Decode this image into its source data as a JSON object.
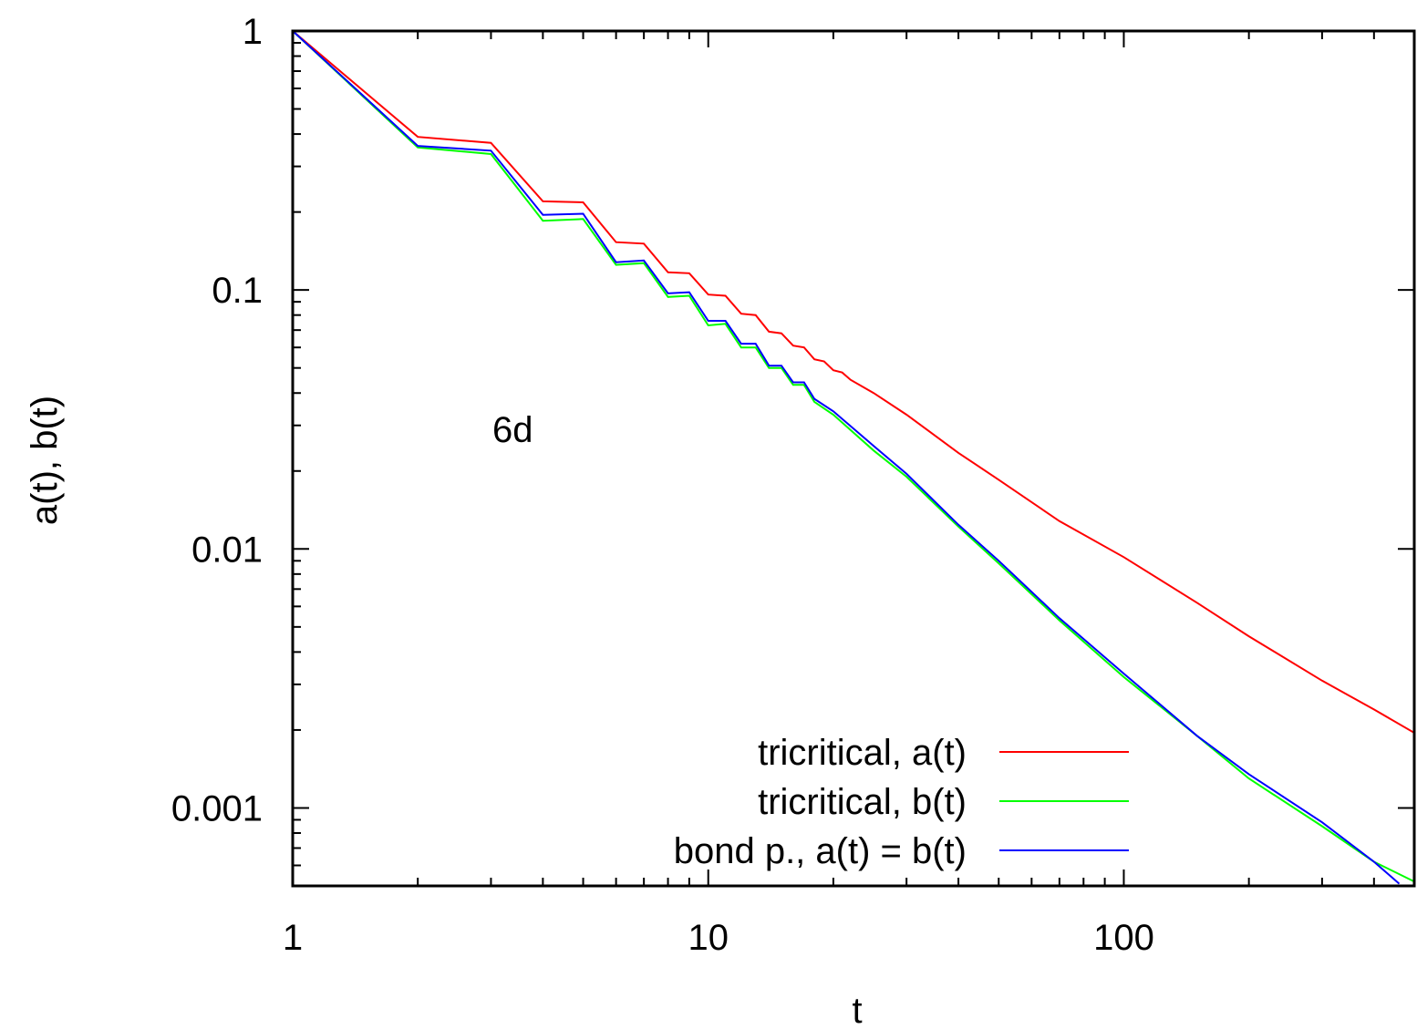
{
  "chart_data": {
    "type": "line",
    "xscale": "log",
    "yscale": "log",
    "xlim": [
      1,
      500
    ],
    "ylim": [
      0.0005,
      1
    ],
    "xlabel": "t",
    "ylabel": "a(t),  b(t)",
    "annotation": "6d",
    "xticks": [
      {
        "value": 1,
        "label": "1"
      },
      {
        "value": 10,
        "label": "10"
      },
      {
        "value": 100,
        "label": "100"
      }
    ],
    "yticks": [
      {
        "value": 1,
        "label": "1"
      },
      {
        "value": 0.1,
        "label": "0.1"
      },
      {
        "value": 0.01,
        "label": "0.01"
      },
      {
        "value": 0.001,
        "label": "0.001"
      }
    ],
    "legend_position": "bottom-right",
    "series": [
      {
        "name": "tricritical, a(t)",
        "color": "#ff0000",
        "points": [
          [
            1,
            1
          ],
          [
            2,
            0.39
          ],
          [
            3,
            0.37
          ],
          [
            4,
            0.22
          ],
          [
            5,
            0.218
          ],
          [
            6,
            0.153
          ],
          [
            7,
            0.151
          ],
          [
            8,
            0.117
          ],
          [
            9,
            0.116
          ],
          [
            10,
            0.096
          ],
          [
            11,
            0.095
          ],
          [
            12,
            0.081
          ],
          [
            13,
            0.08
          ],
          [
            14,
            0.069
          ],
          [
            15,
            0.068
          ],
          [
            16,
            0.061
          ],
          [
            17,
            0.06
          ],
          [
            18,
            0.054
          ],
          [
            19,
            0.053
          ],
          [
            20,
            0.049
          ],
          [
            21,
            0.048
          ],
          [
            22,
            0.045
          ],
          [
            25,
            0.04
          ],
          [
            30,
            0.033
          ],
          [
            40,
            0.0235
          ],
          [
            50,
            0.0185
          ],
          [
            70,
            0.0128
          ],
          [
            100,
            0.0093
          ],
          [
            150,
            0.0062
          ],
          [
            200,
            0.0046
          ],
          [
            300,
            0.0031
          ],
          [
            400,
            0.0024
          ],
          [
            500,
            0.00195
          ]
        ]
      },
      {
        "name": "tricritical, b(t)",
        "color": "#00ff00",
        "points": [
          [
            1,
            1
          ],
          [
            2,
            0.355
          ],
          [
            3,
            0.335
          ],
          [
            4,
            0.185
          ],
          [
            5,
            0.188
          ],
          [
            6,
            0.125
          ],
          [
            7,
            0.127
          ],
          [
            8,
            0.094
          ],
          [
            9,
            0.095
          ],
          [
            10,
            0.073
          ],
          [
            11,
            0.074
          ],
          [
            12,
            0.06
          ],
          [
            13,
            0.06
          ],
          [
            14,
            0.05
          ],
          [
            15,
            0.05
          ],
          [
            16,
            0.043
          ],
          [
            17,
            0.043
          ],
          [
            18,
            0.037
          ],
          [
            20,
            0.033
          ],
          [
            25,
            0.024
          ],
          [
            30,
            0.019
          ],
          [
            40,
            0.0122
          ],
          [
            50,
            0.0088
          ],
          [
            70,
            0.0053
          ],
          [
            100,
            0.0032
          ],
          [
            150,
            0.0019
          ],
          [
            200,
            0.0013
          ],
          [
            300,
            0.00085
          ],
          [
            400,
            0.00062
          ],
          [
            500,
            0.00052
          ]
        ]
      },
      {
        "name": "bond p.,   a(t) = b(t)",
        "color": "#0000ff",
        "points": [
          [
            1,
            1
          ],
          [
            2,
            0.36
          ],
          [
            3,
            0.345
          ],
          [
            4,
            0.195
          ],
          [
            5,
            0.197
          ],
          [
            6,
            0.128
          ],
          [
            7,
            0.13
          ],
          [
            8,
            0.097
          ],
          [
            9,
            0.098
          ],
          [
            10,
            0.076
          ],
          [
            11,
            0.076
          ],
          [
            12,
            0.062
          ],
          [
            13,
            0.062
          ],
          [
            14,
            0.051
          ],
          [
            15,
            0.051
          ],
          [
            16,
            0.044
          ],
          [
            17,
            0.044
          ],
          [
            18,
            0.038
          ],
          [
            20,
            0.034
          ],
          [
            25,
            0.025
          ],
          [
            30,
            0.0195
          ],
          [
            40,
            0.0124
          ],
          [
            50,
            0.009
          ],
          [
            70,
            0.0054
          ],
          [
            100,
            0.0033
          ],
          [
            150,
            0.0019
          ],
          [
            200,
            0.00135
          ],
          [
            300,
            0.00088
          ],
          [
            400,
            0.00062
          ],
          [
            460,
            0.00051
          ]
        ]
      }
    ]
  }
}
